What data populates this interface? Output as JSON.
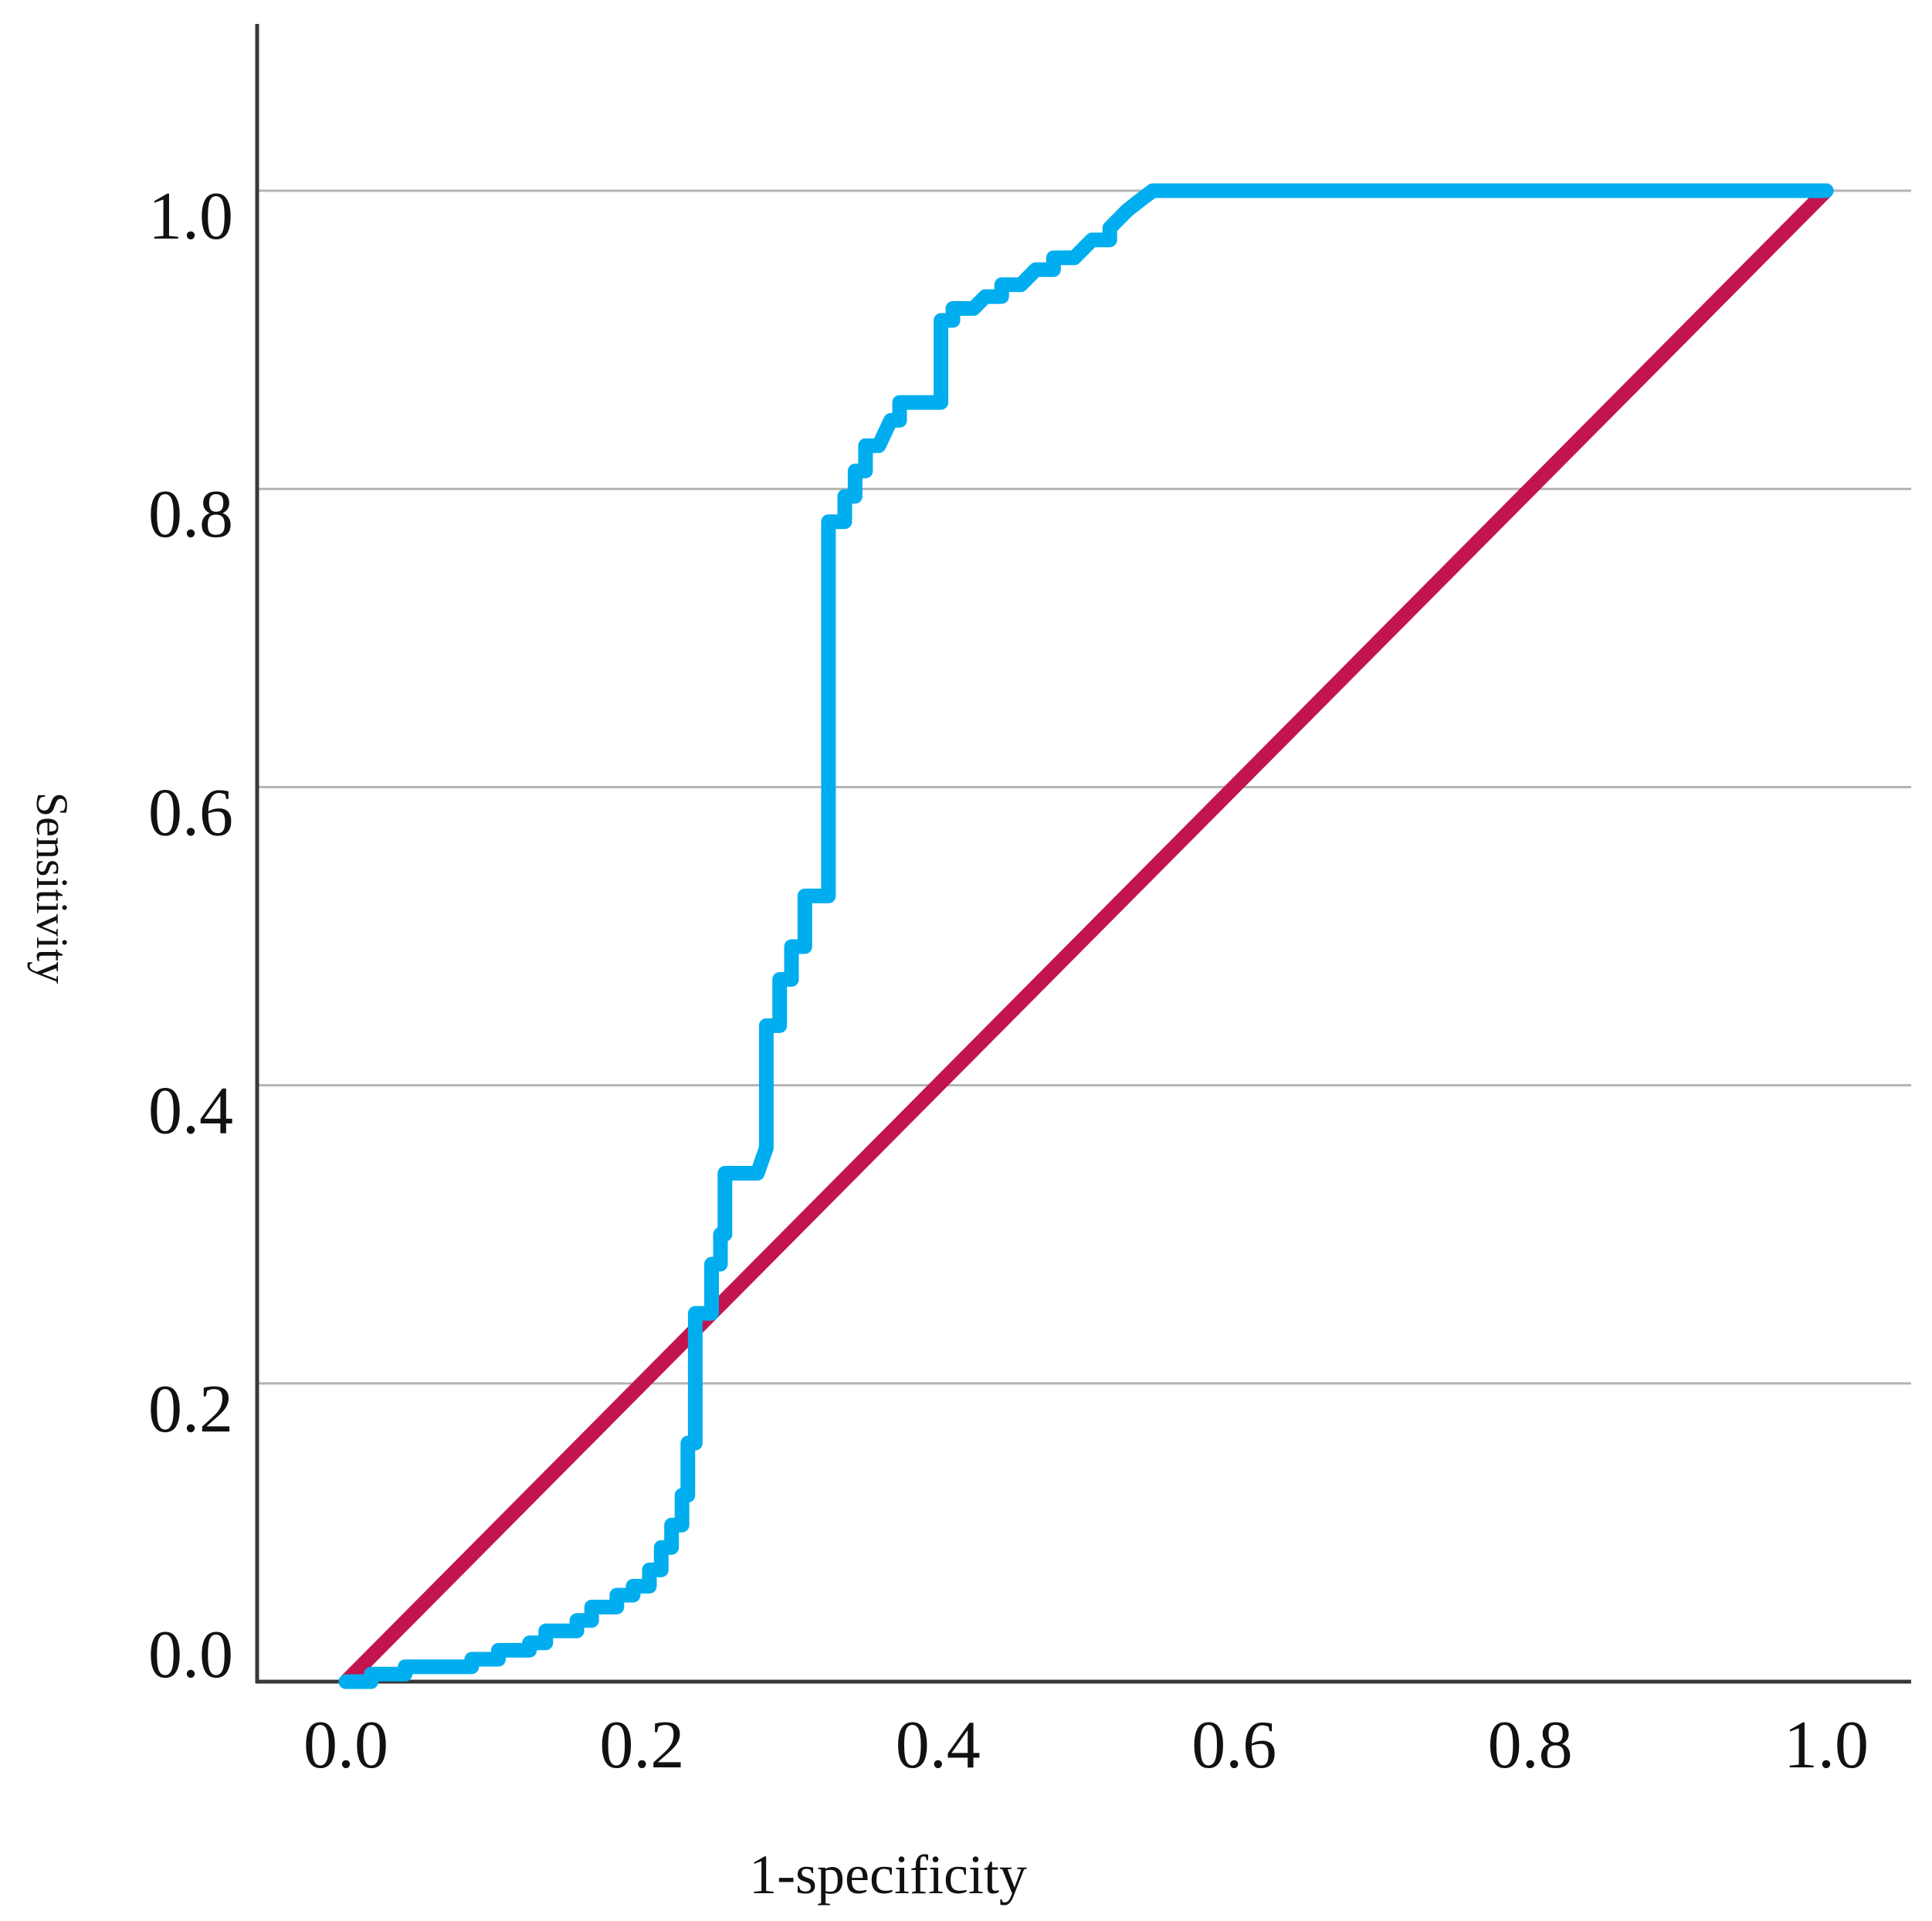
{
  "chart_data": {
    "type": "line",
    "subtype": "roc-curve",
    "title": "",
    "xlabel": "1-specificity",
    "ylabel": "Sensitivity",
    "xlim": [
      0.0,
      1.0
    ],
    "ylim": [
      0.0,
      1.0
    ],
    "grid": "horizontal-only",
    "legend_position": "none",
    "x_ticks": [
      {
        "value": 0.0,
        "label": "0.0"
      },
      {
        "value": 0.2,
        "label": "0.2"
      },
      {
        "value": 0.4,
        "label": "0.4"
      },
      {
        "value": 0.6,
        "label": "0.6"
      },
      {
        "value": 0.8,
        "label": "0.8"
      },
      {
        "value": 1.0,
        "label": "1.0"
      }
    ],
    "y_ticks": [
      {
        "value": 1.0,
        "label": "1.0"
      },
      {
        "value": 0.8,
        "label": "0.8"
      },
      {
        "value": 0.6,
        "label": "0.6"
      },
      {
        "value": 0.4,
        "label": "0.4"
      },
      {
        "value": 0.2,
        "label": "0.2"
      },
      {
        "value": 0.0,
        "label": "0.0"
      }
    ],
    "series": [
      {
        "name": "ROC curve",
        "color": "#00AEEF",
        "stroke_width": 19,
        "points": [
          [
            0.0,
            0.0
          ],
          [
            0.017,
            0.0
          ],
          [
            0.017,
            0.005
          ],
          [
            0.04,
            0.005
          ],
          [
            0.04,
            0.01
          ],
          [
            0.085,
            0.01
          ],
          [
            0.085,
            0.015
          ],
          [
            0.103,
            0.015
          ],
          [
            0.103,
            0.021
          ],
          [
            0.124,
            0.021
          ],
          [
            0.124,
            0.026
          ],
          [
            0.135,
            0.026
          ],
          [
            0.135,
            0.034
          ],
          [
            0.156,
            0.034
          ],
          [
            0.156,
            0.041
          ],
          [
            0.166,
            0.041
          ],
          [
            0.166,
            0.05
          ],
          [
            0.183,
            0.05
          ],
          [
            0.183,
            0.058
          ],
          [
            0.194,
            0.058
          ],
          [
            0.194,
            0.064
          ],
          [
            0.205,
            0.064
          ],
          [
            0.205,
            0.075
          ],
          [
            0.213,
            0.075
          ],
          [
            0.213,
            0.09
          ],
          [
            0.22,
            0.09
          ],
          [
            0.22,
            0.105
          ],
          [
            0.227,
            0.105
          ],
          [
            0.227,
            0.125
          ],
          [
            0.231,
            0.125
          ],
          [
            0.231,
            0.16
          ],
          [
            0.236,
            0.16
          ],
          [
            0.236,
            0.247
          ],
          [
            0.247,
            0.247
          ],
          [
            0.247,
            0.28
          ],
          [
            0.253,
            0.28
          ],
          [
            0.253,
            0.3
          ],
          [
            0.256,
            0.3
          ],
          [
            0.256,
            0.341
          ],
          [
            0.278,
            0.341
          ],
          [
            0.284,
            0.358
          ],
          [
            0.284,
            0.44
          ],
          [
            0.293,
            0.44
          ],
          [
            0.293,
            0.471
          ],
          [
            0.301,
            0.471
          ],
          [
            0.301,
            0.493
          ],
          [
            0.31,
            0.493
          ],
          [
            0.31,
            0.527
          ],
          [
            0.326,
            0.527
          ],
          [
            0.326,
            0.778
          ],
          [
            0.337,
            0.778
          ],
          [
            0.337,
            0.795
          ],
          [
            0.344,
            0.795
          ],
          [
            0.344,
            0.812
          ],
          [
            0.351,
            0.812
          ],
          [
            0.351,
            0.829
          ],
          [
            0.36,
            0.829
          ],
          [
            0.368,
            0.846
          ],
          [
            0.374,
            0.846
          ],
          [
            0.374,
            0.858
          ],
          [
            0.402,
            0.858
          ],
          [
            0.402,
            0.913
          ],
          [
            0.41,
            0.913
          ],
          [
            0.41,
            0.921
          ],
          [
            0.424,
            0.921
          ],
          [
            0.432,
            0.929
          ],
          [
            0.443,
            0.929
          ],
          [
            0.443,
            0.937
          ],
          [
            0.456,
            0.937
          ],
          [
            0.466,
            0.947
          ],
          [
            0.478,
            0.947
          ],
          [
            0.478,
            0.955
          ],
          [
            0.492,
            0.955
          ],
          [
            0.504,
            0.967
          ],
          [
            0.516,
            0.967
          ],
          [
            0.516,
            0.975
          ],
          [
            0.528,
            0.987
          ],
          [
            0.537,
            0.994
          ],
          [
            0.545,
            1.0
          ],
          [
            1.0,
            1.0
          ]
        ]
      },
      {
        "name": "Reference diagonal",
        "color": "#C21550",
        "stroke_width": 19,
        "points": [
          [
            0.0,
            0.0
          ],
          [
            1.0,
            1.0
          ]
        ]
      }
    ],
    "colors": {
      "roc_line": "#00AEEF",
      "reference_line": "#C21550",
      "gridline": "#b3b3b3",
      "axis_line": "#383838",
      "text": "#111111",
      "background": "#ffffff"
    }
  }
}
